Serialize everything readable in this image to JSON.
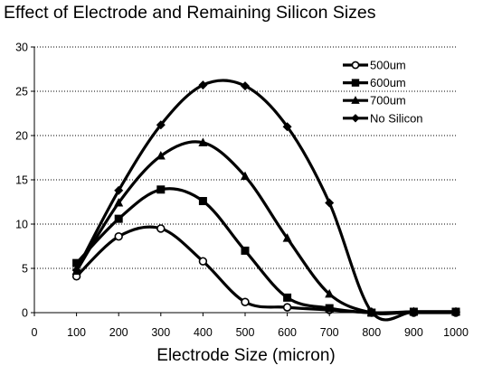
{
  "chart_data": {
    "type": "line",
    "title": "Effect of Electrode and Remaining Silicon Sizes",
    "xlabel": "Electrode Size (micron)",
    "ylabel": "",
    "xlim": [
      0,
      1000
    ],
    "ylim": [
      0,
      30
    ],
    "x_ticks": [
      "0",
      "100",
      "200",
      "300",
      "400",
      "500",
      "600",
      "700",
      "800",
      "900",
      "1000"
    ],
    "y_ticks": [
      "0",
      "5",
      "10",
      "15",
      "20",
      "25",
      "30"
    ],
    "grid": "horizontal dotted",
    "legend_position": "top-right",
    "x": [
      100,
      200,
      300,
      400,
      500,
      600,
      700,
      800,
      900,
      1000
    ],
    "series": [
      {
        "name": "500um",
        "marker": "circle",
        "values": [
          4.1,
          8.6,
          9.5,
          5.8,
          1.2,
          0.6,
          0.3,
          0.0,
          0.0,
          0.0
        ]
      },
      {
        "name": "600um",
        "marker": "square",
        "values": [
          5.6,
          10.6,
          13.9,
          12.6,
          7.0,
          1.7,
          0.5,
          0.0,
          0.1,
          0.1
        ]
      },
      {
        "name": "700um",
        "marker": "triangle",
        "values": [
          4.7,
          12.4,
          17.7,
          19.2,
          15.4,
          8.4,
          2.1,
          0.0,
          0.1,
          0.1
        ]
      },
      {
        "name": "No Silicon",
        "marker": "diamond",
        "values": [
          4.8,
          13.8,
          21.2,
          25.7,
          25.6,
          21.0,
          12.4,
          0.1,
          0.1,
          0.1
        ]
      }
    ]
  }
}
